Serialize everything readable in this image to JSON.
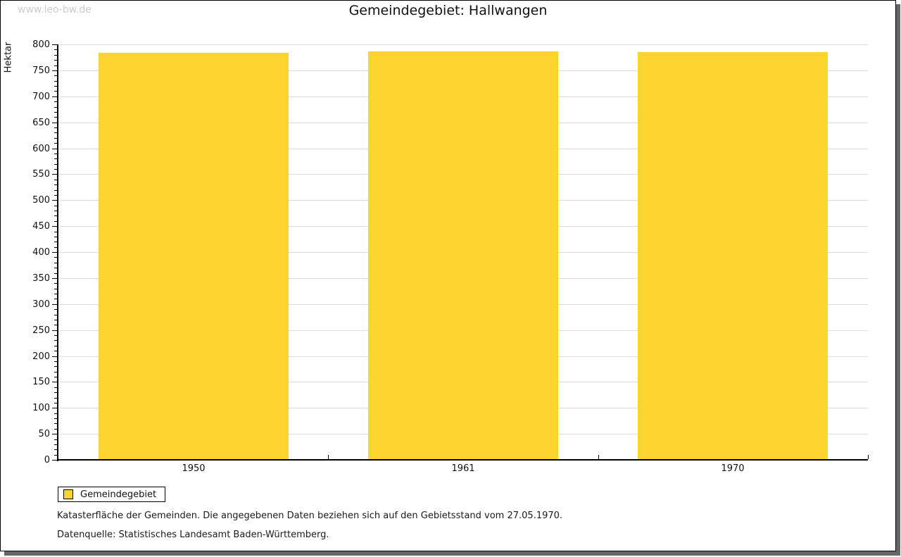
{
  "watermark": "www.leo-bw.de",
  "title": "Gemeindegebiet: Hallwangen",
  "chart_data": {
    "type": "bar",
    "title": "Gemeindegebiet: Hallwangen",
    "categories": [
      "1950",
      "1961",
      "1970"
    ],
    "series": [
      {
        "name": "Gemeindegebiet",
        "values": [
          784,
          786,
          785
        ]
      }
    ],
    "xlabel": "",
    "ylabel": "Hektar",
    "ylim": [
      0,
      800
    ],
    "ytick_major": 50,
    "ytick_minor": 10,
    "grid": "horizontal-major-lines",
    "gridline_color": "#dcdcdc",
    "bar_color": "#FCD42D",
    "legend_position": "bottom-left"
  },
  "legend": {
    "items": [
      {
        "label": "Gemeindegebiet",
        "color": "#FCD42D"
      }
    ]
  },
  "footer": {
    "line1": "Katasterfläche der Gemeinden. Die angegebenen Daten beziehen sich auf den Gebietsstand vom 27.05.1970.",
    "line2": "Datenquelle: Statistisches Landesamt Baden-Württemberg."
  }
}
